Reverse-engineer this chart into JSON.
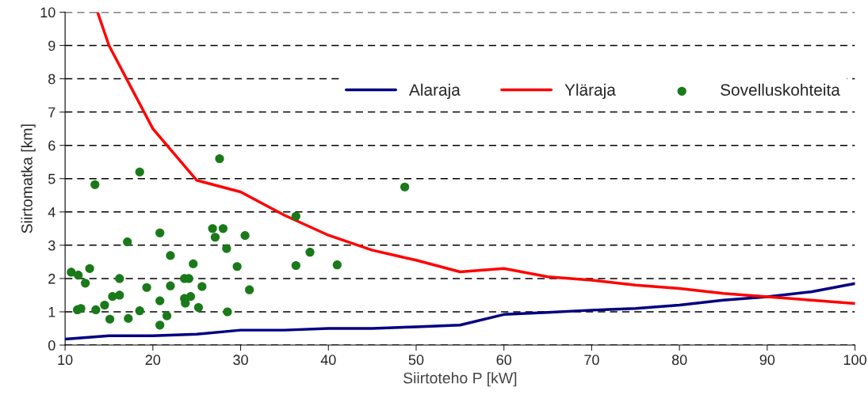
{
  "chart_data": {
    "type": "line",
    "xlabel": "Siirtoteho P [kW]",
    "ylabel": "Siirtomatka [km]",
    "xlim": [
      10,
      100
    ],
    "xticks": [
      10,
      20,
      30,
      40,
      50,
      60,
      70,
      80,
      90,
      100
    ],
    "ylim": [
      0,
      10
    ],
    "yticks": [
      0,
      1,
      2,
      3,
      4,
      5,
      6,
      7,
      8,
      9,
      10
    ],
    "grid": "y",
    "legend": "top right",
    "series": [
      {
        "name": "Alaraja",
        "color": "#000080",
        "x": [
          10,
          15,
          20,
          25,
          30,
          35,
          40,
          45,
          50,
          55,
          60,
          65,
          70,
          75,
          80,
          85,
          90,
          95,
          100
        ],
        "values": [
          0.18,
          0.28,
          0.28,
          0.33,
          0.45,
          0.45,
          0.5,
          0.5,
          0.55,
          0.6,
          0.92,
          0.98,
          1.05,
          1.1,
          1.2,
          1.35,
          1.45,
          1.6,
          1.85
        ]
      },
      {
        "name": "Yläraja",
        "color": "#ff0000",
        "x": [
          13.7,
          15,
          20,
          25,
          30,
          35,
          40,
          45,
          50,
          55,
          60,
          65,
          70,
          75,
          80,
          85,
          90,
          95,
          100
        ],
        "values": [
          10,
          9,
          6.5,
          4.95,
          4.6,
          3.9,
          3.3,
          2.85,
          2.55,
          2.2,
          2.3,
          2.05,
          1.95,
          1.8,
          1.7,
          1.55,
          1.45,
          1.35,
          1.25
        ]
      },
      {
        "name": "Sovelluskohteita",
        "type": "scatter",
        "color": "#1a7a1a",
        "marker": "circle",
        "x": [
          10.7,
          11.5,
          12.8,
          12.3,
          11.4,
          11.8,
          13.5,
          13.4,
          14.5,
          15.1,
          15.4,
          16.2,
          16.2,
          17.1,
          17.2,
          18.5,
          18.5,
          19.3,
          20.8,
          20.8,
          20.8,
          21.6,
          22.0,
          22.0,
          23.6,
          23.7,
          23.6,
          24.3,
          24.1,
          24.6,
          25.2,
          25.6,
          27.6,
          26.8,
          27.1,
          28.0,
          28.4,
          28.5,
          29.6,
          30.5,
          31.0,
          36.3,
          36.3,
          37.9,
          41.0,
          48.7
        ],
        "values": [
          2.19,
          2.1,
          2.3,
          1.86,
          1.06,
          1.1,
          1.06,
          4.82,
          1.2,
          0.78,
          1.46,
          1.5,
          2.0,
          3.1,
          0.8,
          5.2,
          1.03,
          1.73,
          0.6,
          1.33,
          3.37,
          0.88,
          2.69,
          1.78,
          2.0,
          1.26,
          1.4,
          1.46,
          2.0,
          2.44,
          1.13,
          1.76,
          5.6,
          3.5,
          3.24,
          3.5,
          2.9,
          1.0,
          2.36,
          3.29,
          1.66,
          3.87,
          2.39,
          2.79,
          2.41,
          4.75
        ]
      }
    ]
  }
}
